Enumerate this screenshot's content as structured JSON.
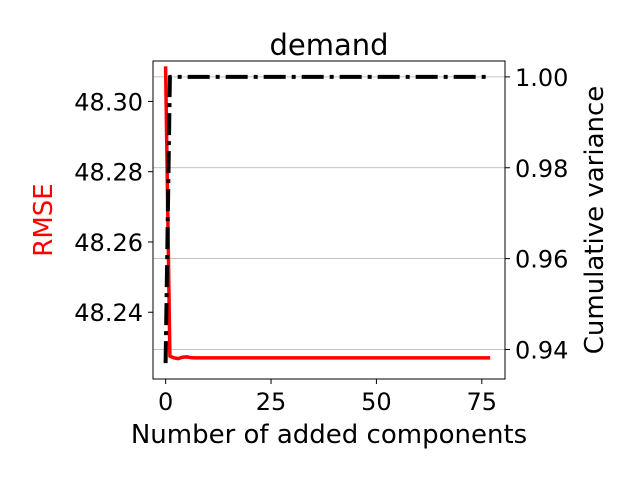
{
  "chart_data": {
    "type": "line",
    "title": "demand",
    "xlabel": "Number of added components",
    "ylabel_left": "RMSE",
    "ylabel_right": "Cumulative variance",
    "xlim": [
      -3,
      80.5
    ],
    "xticks": [
      0,
      25,
      50,
      75
    ],
    "ylim_left": [
      48.221,
      48.3115
    ],
    "yticks_left": [
      48.24,
      48.26,
      48.28,
      48.3
    ],
    "ylim_right": [
      0.9335,
      1.0035
    ],
    "yticks_right": [
      0.94,
      0.96,
      0.98,
      1.0
    ],
    "grid": "horizontal (right axis)",
    "colors": {
      "rmse": "#ff0000",
      "variance": "#000000",
      "grid": "#b0b0b0",
      "left_label": "#ff0000"
    },
    "series": [
      {
        "axis": "left",
        "style": "solid",
        "x": [
          0,
          1,
          2,
          3,
          4,
          5,
          6,
          7,
          10,
          20,
          30,
          40,
          50,
          60,
          70,
          77
        ],
        "values": [
          48.31,
          48.2275,
          48.227,
          48.2268,
          48.2272,
          48.2273,
          48.2271,
          48.227,
          48.227,
          48.227,
          48.227,
          48.227,
          48.227,
          48.227,
          48.227,
          48.227
        ]
      },
      {
        "axis": "right",
        "style": "dash-dot",
        "x": [
          0,
          1,
          2,
          5,
          10,
          20,
          30,
          40,
          50,
          60,
          70,
          77
        ],
        "values": [
          0.937,
          1.0,
          1.0,
          1.0,
          1.0,
          1.0,
          1.0,
          1.0,
          1.0,
          1.0,
          1.0,
          1.0
        ]
      }
    ]
  }
}
